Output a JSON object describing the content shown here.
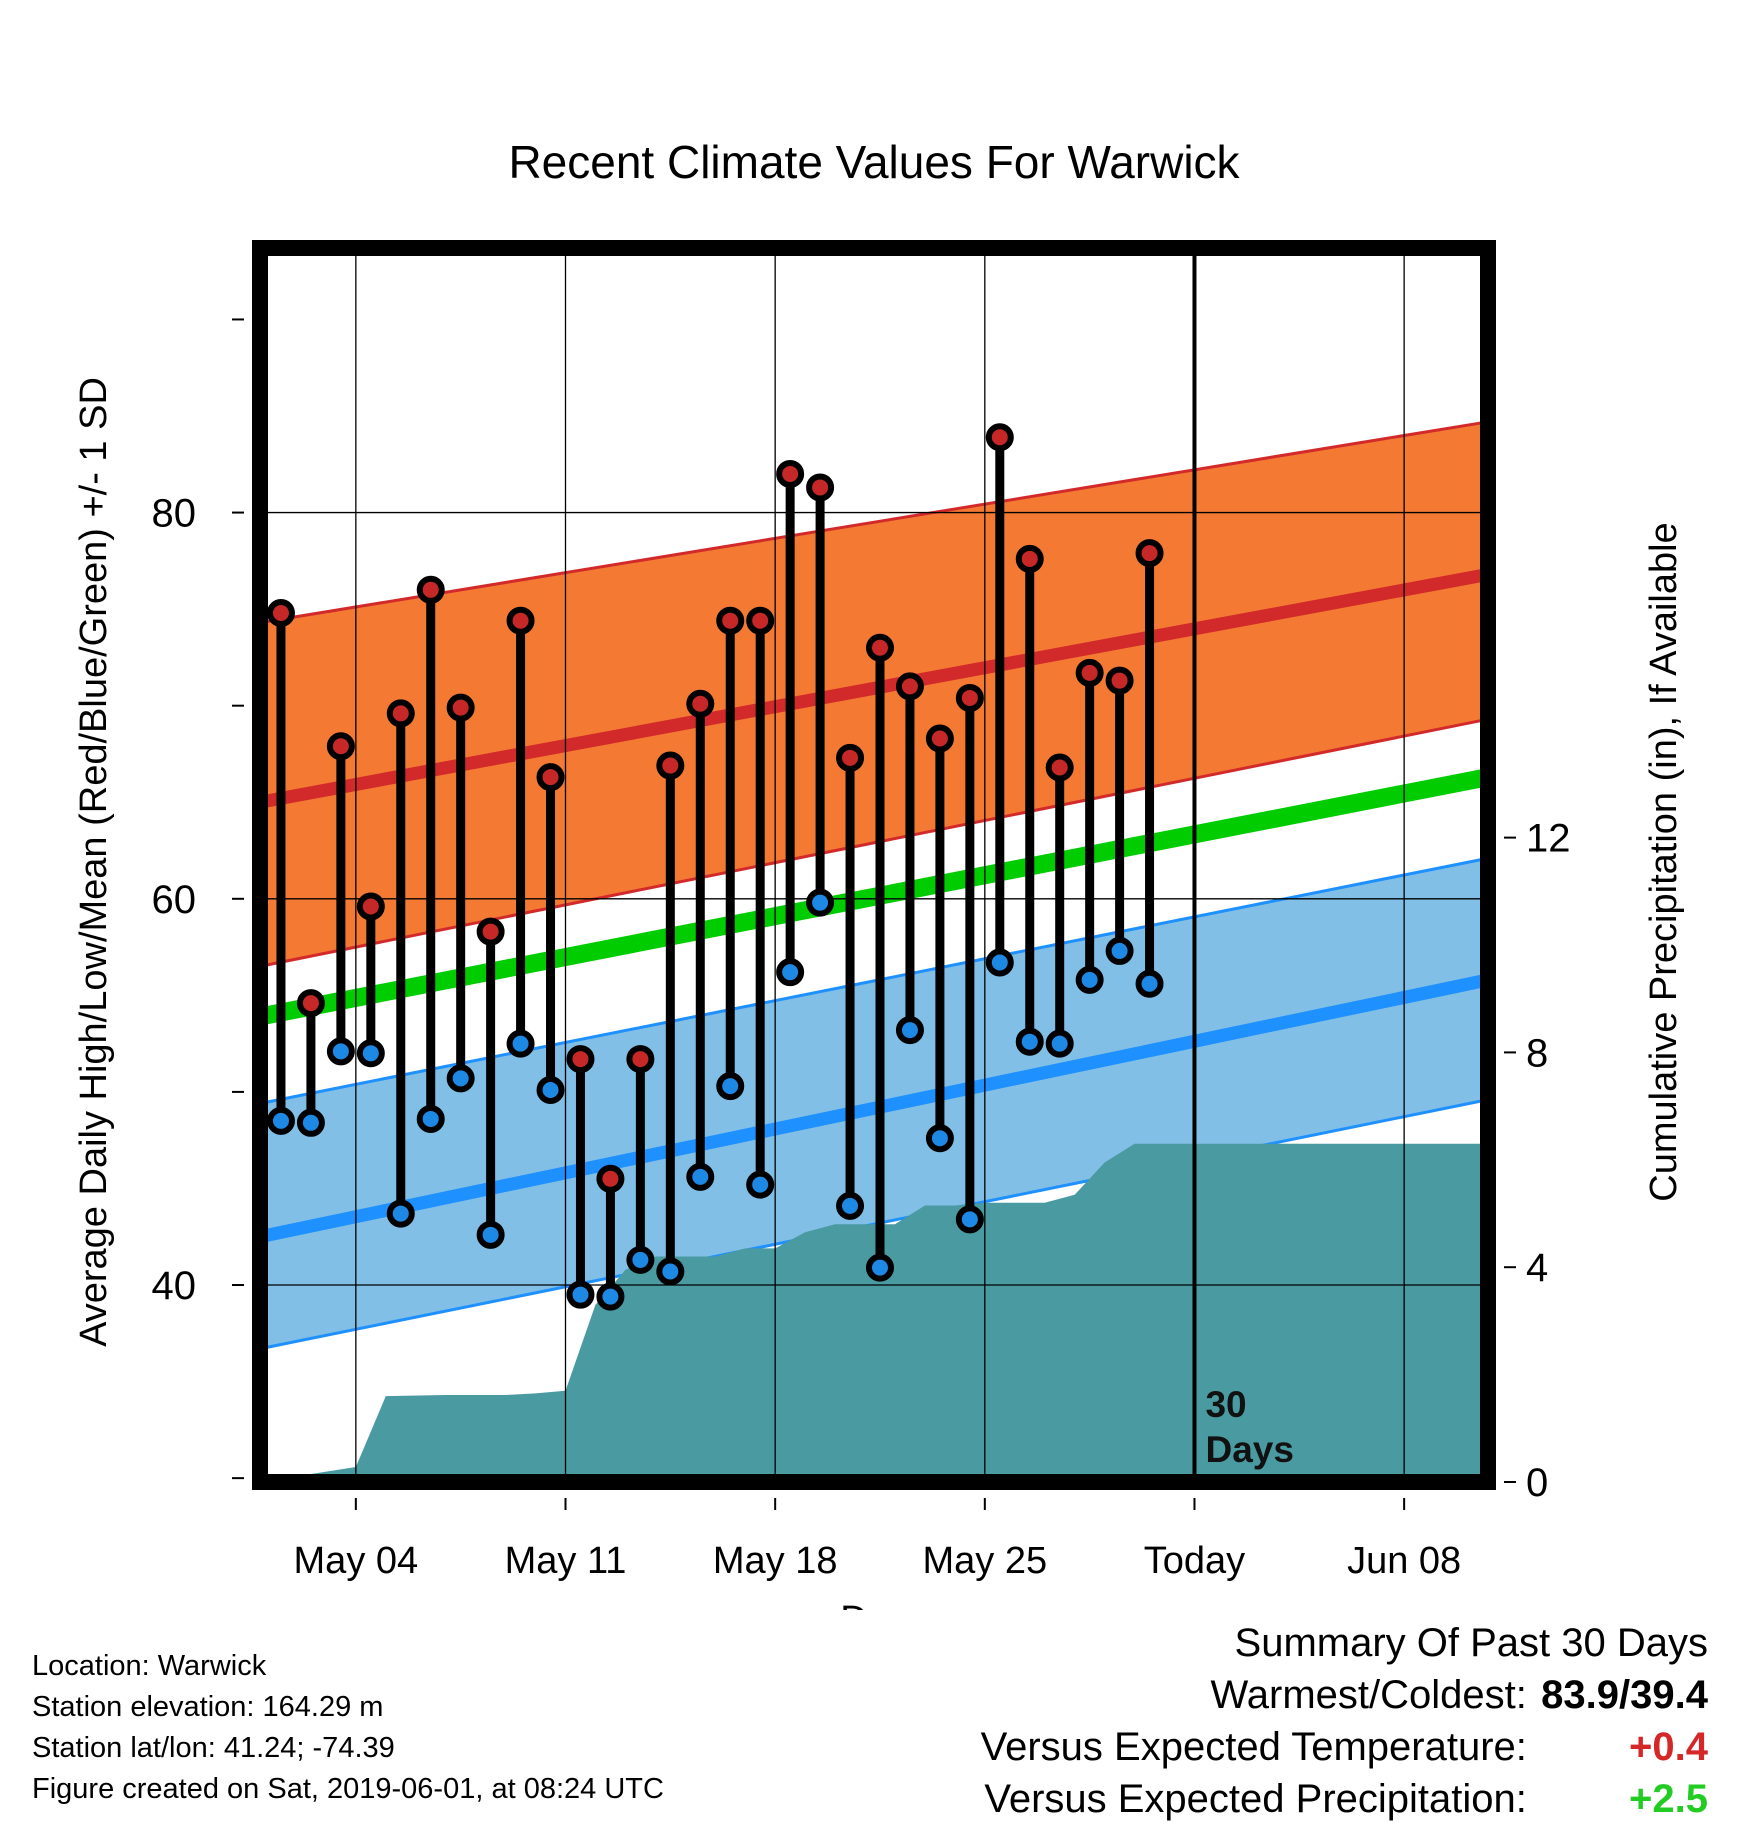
{
  "chart_data": {
    "type": "line",
    "title": "Recent Climate Values For Warwick",
    "xlabel": "Day",
    "ylabel": "Average Daily High/Low/Mean (Red/Blue/Green) +/- 1 SD",
    "y2label": "Cumulative Precipitation (in), If Available",
    "x_ticks": [
      {
        "day": 4,
        "label": "May 04"
      },
      {
        "day": 11,
        "label": "May 11"
      },
      {
        "day": 18,
        "label": "May 18"
      },
      {
        "day": 25,
        "label": "May 25"
      },
      {
        "day": 32,
        "label": "Today"
      },
      {
        "day": 39,
        "label": "Jun 08"
      }
    ],
    "xlim": [
      0.8,
      41.8
    ],
    "ylim": [
      29.8,
      93.7
    ],
    "y_ticks": [
      40,
      60,
      80
    ],
    "y_minor_ticks": [
      30,
      50,
      70,
      90
    ],
    "y2lim": [
      0,
      22.98
    ],
    "y2_ticks": [
      0,
      4,
      8,
      12
    ],
    "grid": true,
    "today_day": 32,
    "today_label_line1": "30",
    "today_label_line2": "Days",
    "normals": {
      "days": [
        0.8,
        41.8
      ],
      "high_mean": [
        65.0,
        76.8
      ],
      "high_upper": [
        74.3,
        84.7
      ],
      "high_lower": [
        56.5,
        69.3
      ],
      "low_mean": [
        42.5,
        55.8
      ],
      "low_upper": [
        49.4,
        62.1
      ],
      "low_lower": [
        36.7,
        49.6
      ],
      "mean_mean": [
        53.9,
        66.3
      ]
    },
    "series": [
      {
        "name": "High",
        "color": "#c62828",
        "x": [
          1.5,
          2.5,
          3.5,
          4.5,
          5.5,
          6.5,
          7.5,
          8.5,
          9.5,
          10.5,
          11.5,
          12.5,
          13.5,
          14.5,
          15.5,
          16.5,
          17.5,
          18.5,
          19.5,
          20.5,
          21.5,
          22.5,
          23.5,
          24.5,
          25.5,
          26.5,
          27.5,
          28.5,
          29.5,
          30.5
        ],
        "values": [
          74.8,
          54.6,
          67.9,
          59.6,
          69.6,
          76.0,
          69.9,
          58.3,
          74.4,
          66.3,
          51.7,
          45.5,
          51.7,
          66.9,
          70.1,
          74.4,
          74.4,
          82.0,
          81.3,
          67.3,
          73.0,
          71.0,
          68.3,
          70.4,
          83.9,
          77.6,
          66.8,
          71.7,
          71.3,
          77.9
        ]
      },
      {
        "name": "Low",
        "color": "#1e88e5",
        "x": [
          1.5,
          2.5,
          3.5,
          4.5,
          5.5,
          6.5,
          7.5,
          8.5,
          9.5,
          10.5,
          11.5,
          12.5,
          13.5,
          14.5,
          15.5,
          16.5,
          17.5,
          18.5,
          19.5,
          20.5,
          21.5,
          22.5,
          23.5,
          24.5,
          25.5,
          26.5,
          27.5,
          28.5,
          29.5,
          30.5
        ],
        "values": [
          48.5,
          48.4,
          52.1,
          52.0,
          43.7,
          48.6,
          50.7,
          42.6,
          52.5,
          50.1,
          39.5,
          39.4,
          41.3,
          40.7,
          45.6,
          50.3,
          45.2,
          56.2,
          59.8,
          44.1,
          40.9,
          53.2,
          47.6,
          43.4,
          56.7,
          52.6,
          52.5,
          55.8,
          57.3,
          55.6
        ]
      },
      {
        "name": "Cumulative Precipitation",
        "color": "#4a9aa2",
        "x": [
          0.8,
          4.0,
          5.0,
          7.0,
          9.0,
          10.0,
          11.0,
          12.0,
          13.0,
          14.0,
          15.0,
          16.0,
          17.0,
          18.0,
          19.0,
          20.0,
          21.0,
          22.0,
          23.0,
          24.0,
          25.0,
          26.0,
          27.0,
          28.0,
          29.0,
          30.0,
          31.0,
          32.0,
          41.8
        ],
        "values": [
          0,
          0.28,
          1.6,
          1.62,
          1.62,
          1.65,
          1.7,
          3.3,
          3.95,
          4.2,
          4.2,
          4.2,
          4.35,
          4.35,
          4.65,
          4.8,
          4.8,
          4.8,
          5.15,
          5.15,
          5.2,
          5.2,
          5.2,
          5.35,
          5.95,
          6.3,
          6.3,
          6.3,
          6.3
        ]
      }
    ]
  },
  "footer": {
    "location": "Location: Warwick",
    "elevation": "Station elevation: 164.29 m",
    "latlon": "Station lat/lon: 41.24; -74.39",
    "created": "Figure created on Sat, 2019-06-01, at 08:24 UTC"
  },
  "summary": {
    "title": "Summary Of Past 30 Days",
    "warm_cold_label": "Warmest/Coldest:",
    "warm_cold_value": "83.9/39.4",
    "temp_label": "Versus Expected Temperature:",
    "temp_value": "+0.4",
    "precip_label": "Versus Expected Precipitation:",
    "precip_value": "+2.5"
  },
  "colors": {
    "high_band": "#f47a33",
    "high_line": "#d22a2a",
    "low_band": "#82bfe6",
    "low_line": "#1e90ff",
    "mean_line": "#00cc00",
    "precip": "#4a9aa2",
    "high_point": "#c62828",
    "low_point": "#1e88e5"
  }
}
